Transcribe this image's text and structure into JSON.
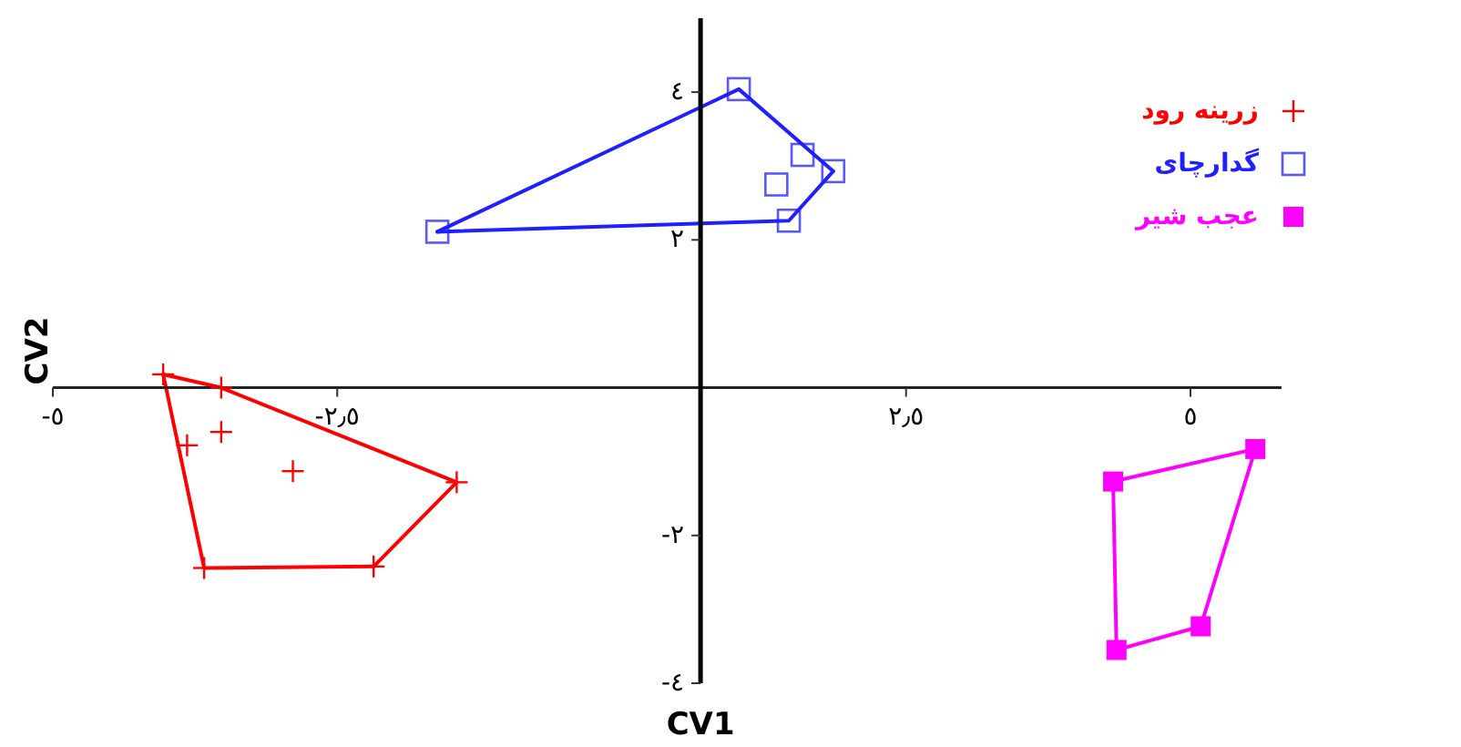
{
  "chart_data": {
    "type": "scatter",
    "xlabel": "CV1",
    "ylabel": "CV2",
    "xlim": [
      -5,
      5.8
    ],
    "ylim": [
      -4,
      5
    ],
    "xticks": [
      {
        "value": -5,
        "label": "-٥"
      },
      {
        "value": -2.5,
        "label": "-٢٫٥"
      },
      {
        "value": 2.5,
        "label": "٢٫٥"
      },
      {
        "value": 5,
        "label": "٥"
      }
    ],
    "yticks": [
      {
        "value": -4,
        "label": "-٤"
      },
      {
        "value": -2,
        "label": "-٢"
      },
      {
        "value": 2,
        "label": "٢"
      },
      {
        "value": 4,
        "label": "٤"
      }
    ],
    "legend": "top right",
    "series": [
      {
        "name": "زرینه رود",
        "color": "#ff0000",
        "marker": "cross",
        "x": [
          -4.03,
          -3.52,
          -3.82,
          -3.52,
          -2.89,
          -1.45,
          -2.18,
          -3.67
        ],
        "values": [
          0.18,
          0,
          -0.78,
          -0.6,
          -1.13,
          -1.28,
          -2.42,
          -2.44
        ]
      },
      {
        "name": "گدارچای",
        "color": "#2020ff",
        "marker": "square",
        "x": [
          -1.62,
          1.03,
          1.59,
          1.86,
          1.36,
          1.47
        ],
        "values": [
          2.11,
          4.04,
          3.15,
          2.93,
          2.75,
          2.26
        ]
      },
      {
        "name": "عجب شیر",
        "color": "#ff00ff",
        "marker": "square",
        "x": [
          4.32,
          5.57,
          5.09,
          4.35
        ],
        "values": [
          -1.27,
          -0.83,
          -3.23,
          -3.55
        ]
      },
      {
        "type": "line",
        "color": "#ff0000",
        "x": [
          -4.03,
          -3.52,
          -1.45,
          -2.18
        ],
        "values": [
          0.18,
          0,
          -1.28,
          -2.42
        ]
      },
      {
        "type": "line",
        "color": "#ff0000",
        "x": [
          -2.18,
          -3.67,
          -4.03
        ],
        "values": [
          -2.42,
          -2.44,
          0.18
        ]
      },
      {
        "type": "line",
        "color": "#2020ff",
        "x": [
          -1.62,
          1.03,
          1.86
        ],
        "values": [
          2.11,
          4.04,
          2.93
        ]
      },
      {
        "type": "line",
        "color": "#2020ff",
        "x": [
          1.86,
          1.47,
          -1.62
        ],
        "values": [
          2.93,
          2.26,
          2.11
        ]
      },
      {
        "type": "line",
        "color": "#ff00ff",
        "x": [
          4.32,
          5.57,
          5.09
        ],
        "values": [
          -1.27,
          -0.83,
          -3.23
        ]
      },
      {
        "type": "line",
        "color": "#ff00ff",
        "x": [
          5.09,
          4.35,
          4.32
        ],
        "values": [
          -3.23,
          -3.55,
          -1.27
        ]
      }
    ]
  }
}
